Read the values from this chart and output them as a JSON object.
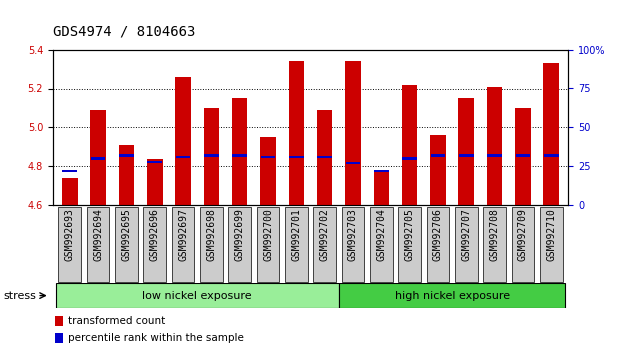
{
  "title": "GDS4974 / 8104663",
  "samples": [
    "GSM992693",
    "GSM992694",
    "GSM992695",
    "GSM992696",
    "GSM992697",
    "GSM992698",
    "GSM992699",
    "GSM992700",
    "GSM992701",
    "GSM992702",
    "GSM992703",
    "GSM992704",
    "GSM992705",
    "GSM992706",
    "GSM992707",
    "GSM992708",
    "GSM992709",
    "GSM992710"
  ],
  "transformed_count": [
    4.74,
    5.09,
    4.91,
    4.84,
    5.26,
    5.1,
    5.15,
    4.95,
    5.34,
    5.09,
    5.34,
    4.78,
    5.22,
    4.96,
    5.15,
    5.21,
    5.1,
    5.33
  ],
  "percentile_rank": [
    22,
    30,
    32,
    28,
    31,
    32,
    32,
    31,
    31,
    31,
    27,
    22,
    30,
    32,
    32,
    32,
    32,
    32
  ],
  "ylim_left": [
    4.6,
    5.4
  ],
  "ylim_right": [
    0,
    100
  ],
  "yticks_left": [
    4.6,
    4.8,
    5.0,
    5.2,
    5.4
  ],
  "yticks_right": [
    0,
    25,
    50,
    75,
    100
  ],
  "ytick_labels_right": [
    "0",
    "25",
    "50",
    "75",
    "100%"
  ],
  "bar_bottom": 4.6,
  "bar_color": "#cc0000",
  "percentile_color": "#0000cc",
  "group1_label": "low nickel exposure",
  "group2_label": "high nickel exposure",
  "group1_count": 10,
  "group2_count": 8,
  "group1_color": "#99ee99",
  "group2_color": "#44cc44",
  "stress_label": "stress",
  "legend1": "transformed count",
  "legend2": "percentile rank within the sample",
  "bar_width": 0.55,
  "background_color": "#ffffff",
  "xtick_bg_color": "#cccccc",
  "title_fontsize": 10,
  "tick_fontsize": 7,
  "label_fontsize": 8,
  "dotted_lines": [
    4.8,
    5.0,
    5.2
  ]
}
